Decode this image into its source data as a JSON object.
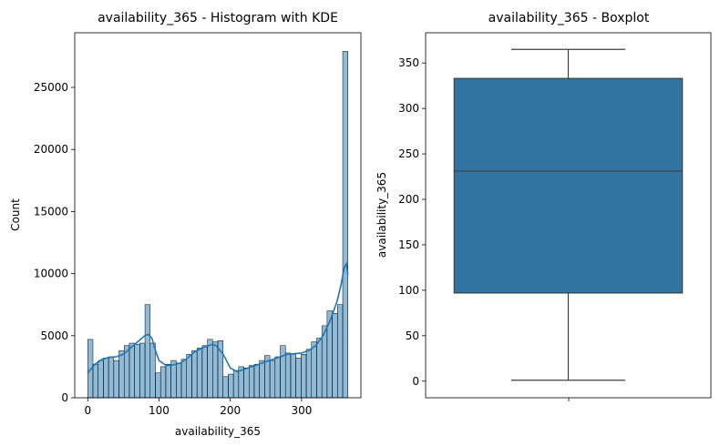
{
  "chart_data": [
    {
      "type": "bar",
      "title": "availability_365 - Histogram with KDE",
      "xlabel": "availability_365",
      "ylabel": "Count",
      "xlim": [
        -18.25,
        383.25
      ],
      "ylim": [
        0,
        29400
      ],
      "x_ticks": [
        0,
        100,
        200,
        300
      ],
      "y_ticks": [
        0,
        5000,
        10000,
        15000,
        20000,
        25000
      ],
      "bar_color": "#1f77b4",
      "bin_width": 7.3,
      "bin_start": 0,
      "values": [
        4700,
        2700,
        3000,
        3200,
        3300,
        3000,
        3800,
        4200,
        4400,
        4300,
        4400,
        7500,
        4400,
        2000,
        2500,
        2700,
        3000,
        2800,
        3100,
        3500,
        3800,
        4000,
        4200,
        4700,
        4500,
        4600,
        1700,
        1900,
        2200,
        2500,
        2400,
        2600,
        2700,
        3000,
        3400,
        3000,
        3300,
        4200,
        3600,
        3500,
        3200,
        3500,
        3900,
        4500,
        4800,
        5800,
        7000,
        6800,
        7500,
        27900
      ],
      "kde": {
        "x": [
          0,
          10,
          20,
          30,
          40,
          50,
          60,
          70,
          80,
          85,
          90,
          95,
          100,
          110,
          120,
          130,
          140,
          150,
          160,
          170,
          175,
          180,
          190,
          200,
          210,
          220,
          230,
          240,
          250,
          260,
          270,
          280,
          290,
          300,
          310,
          320,
          330,
          340,
          350,
          355,
          360,
          363,
          365
        ],
        "y": [
          2000,
          2700,
          3100,
          3250,
          3300,
          3500,
          4000,
          4500,
          5000,
          5100,
          4800,
          3800,
          3000,
          2600,
          2650,
          2800,
          3200,
          3700,
          4000,
          4200,
          4300,
          4200,
          3500,
          2400,
          2100,
          2300,
          2500,
          2700,
          2900,
          3100,
          3300,
          3500,
          3550,
          3600,
          3800,
          4200,
          5000,
          6200,
          7800,
          9000,
          10500,
          10800,
          9900
        ]
      }
    },
    {
      "type": "box",
      "title": "availability_365 - Boxplot",
      "ylabel": "availability_365",
      "ylim": [
        -18.25,
        383.25
      ],
      "y_ticks": [
        0,
        50,
        100,
        150,
        200,
        250,
        300,
        350
      ],
      "box_color": "#3274a1",
      "stats": {
        "min": 1,
        "q1": 97,
        "median": 231,
        "q3": 333,
        "max": 365
      }
    }
  ]
}
